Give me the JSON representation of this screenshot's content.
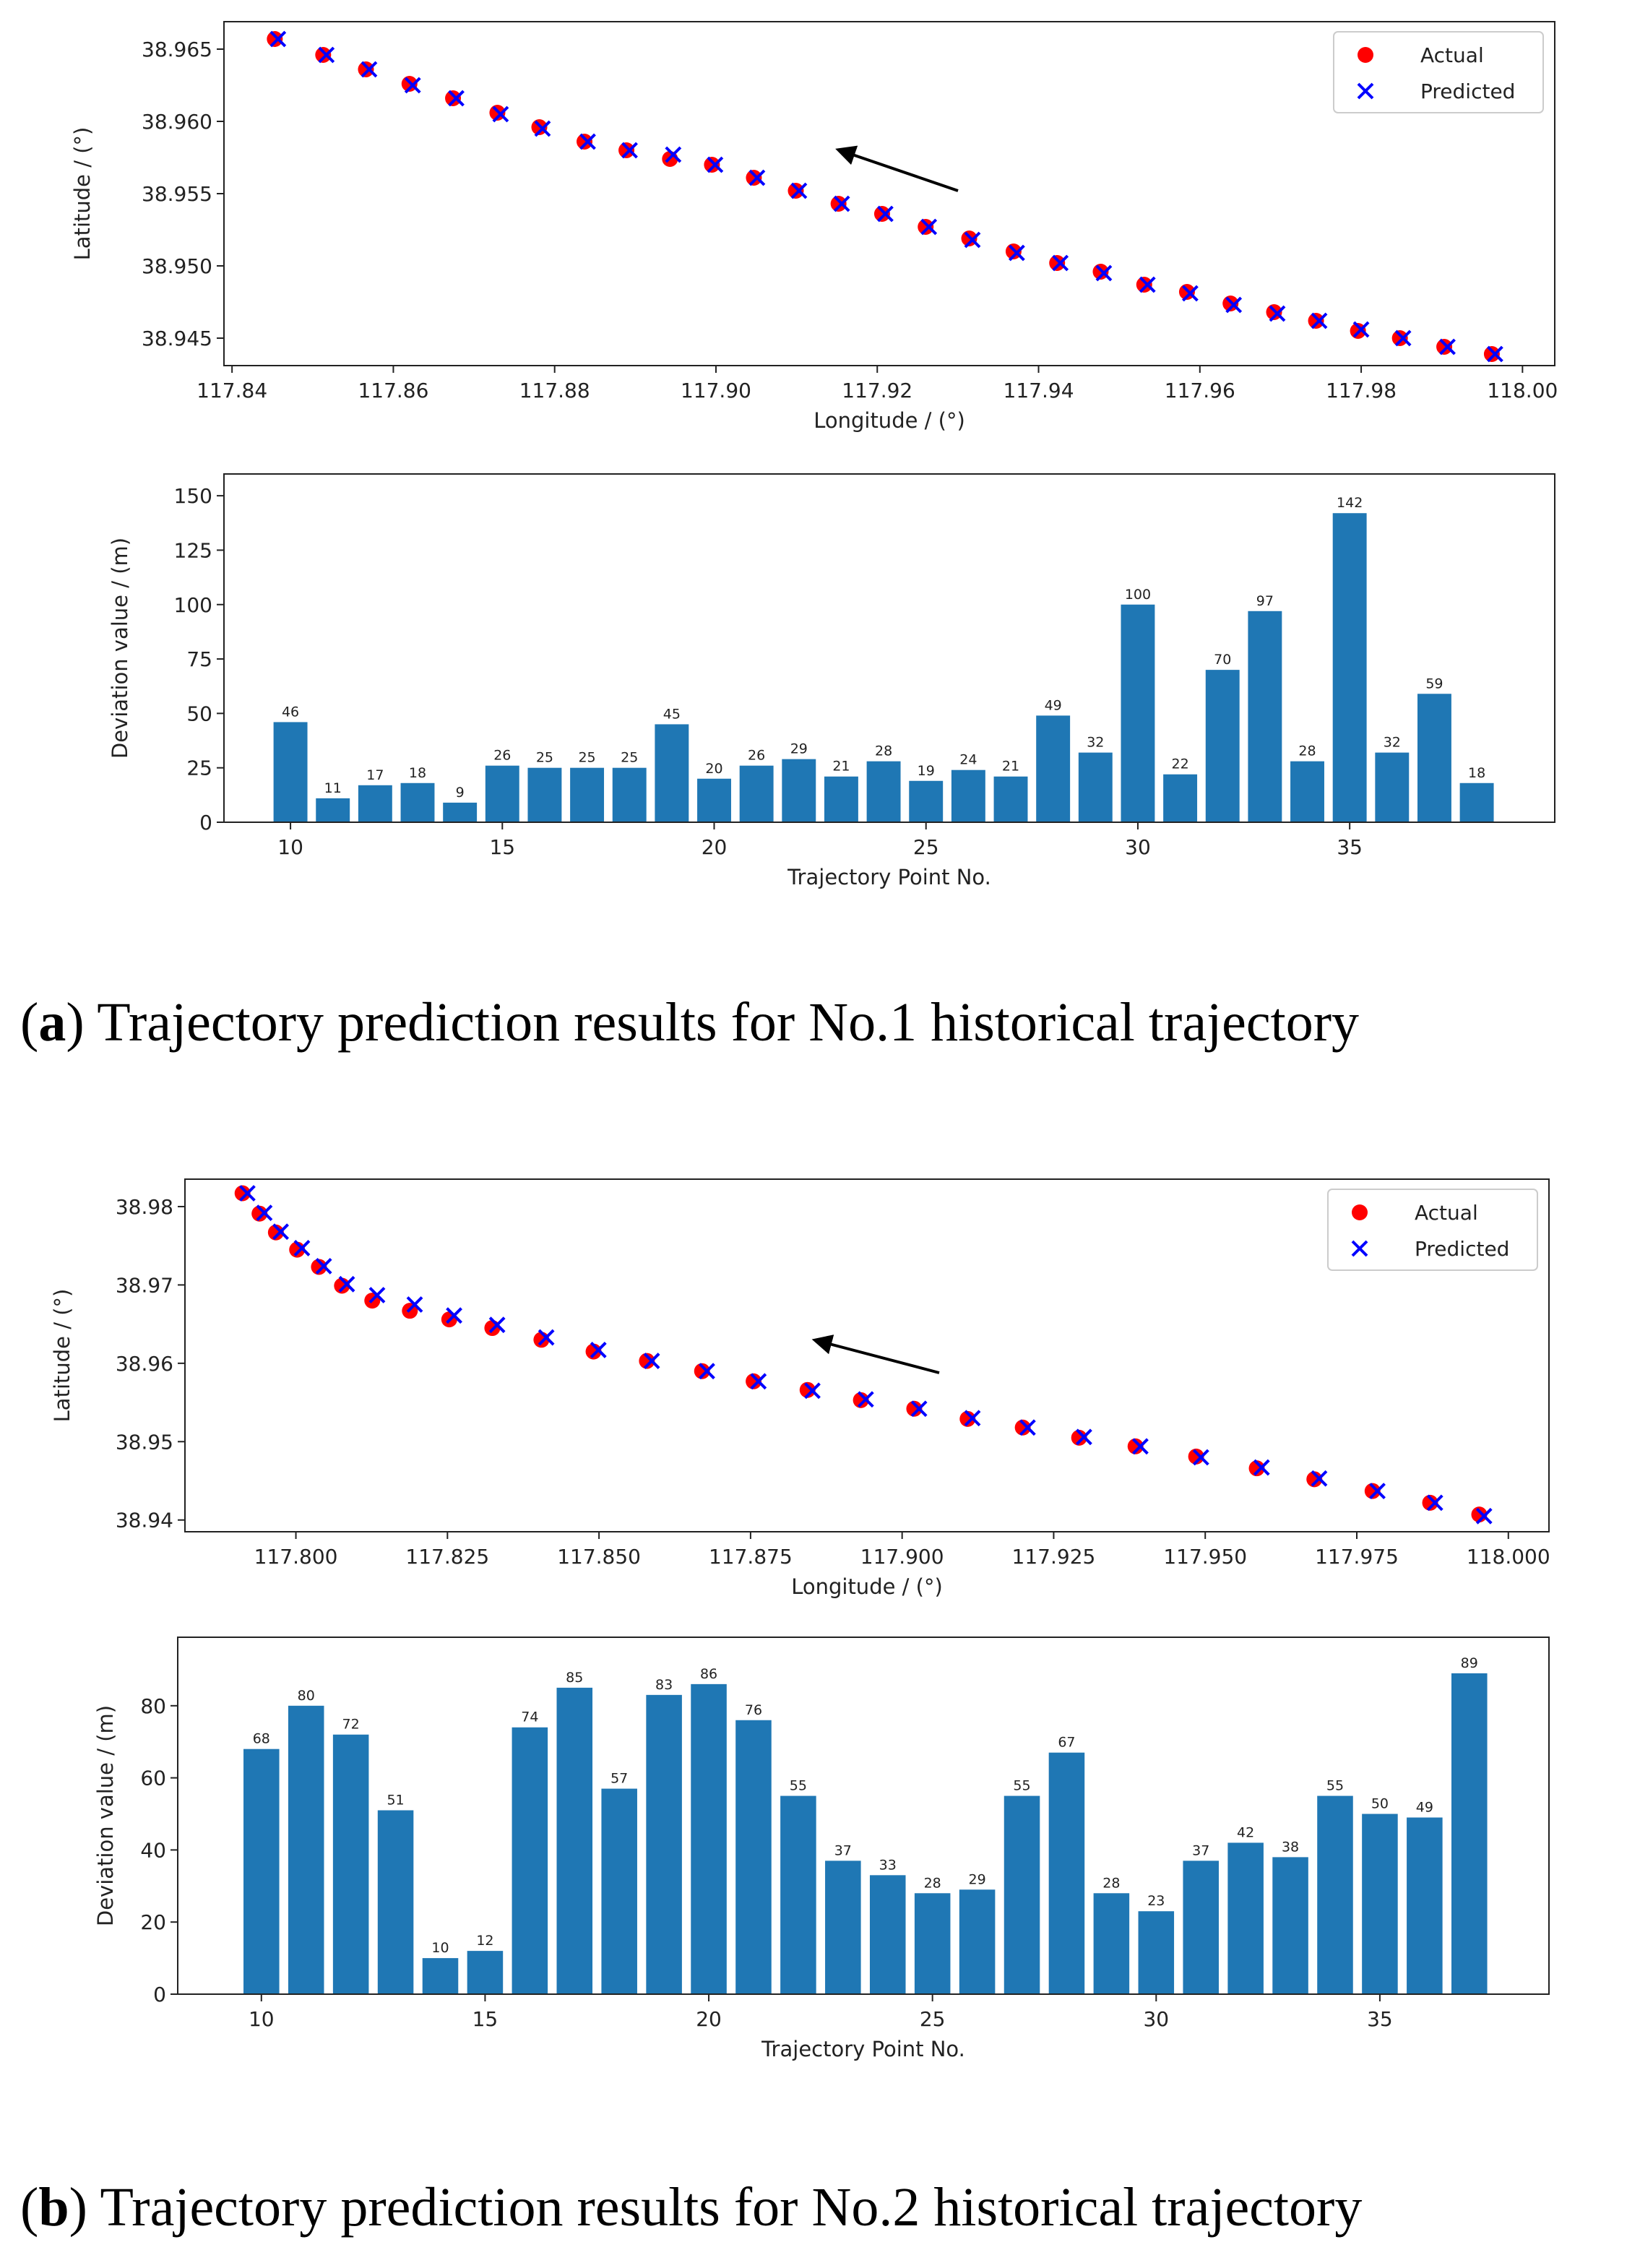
{
  "chart_data": [
    {
      "type": "scatter",
      "xlabel": "Longitude / (°)",
      "ylabel": "Latitude / (°)",
      "legend": "upper right",
      "xlim": [
        117.839,
        118.004
      ],
      "xticks": [
        117.84,
        117.86,
        117.88,
        {
          "value": 117.9,
          "label": "117.90"
        },
        117.92,
        117.94,
        117.96,
        117.98,
        {
          "value": 118,
          "label": "118.00"
        }
      ],
      "ylim": [
        38.9431,
        38.9669
      ],
      "yticks": [
        38.945,
        {
          "value": 38.95,
          "label": "38.950"
        },
        38.955,
        {
          "value": 38.96,
          "label": "38.960"
        },
        38.965
      ],
      "series": [
        {
          "name": "Actual",
          "color": "#ff0000",
          "marker": "o",
          "x": [
            117.8453,
            117.8513,
            117.8566,
            117.862,
            117.8674,
            117.8729,
            117.8781,
            117.8837,
            117.8889,
            117.8943,
            117.8995,
            117.9047,
            117.9099,
            117.9152,
            117.9206,
            117.926,
            117.9314,
            117.9369,
            117.9423,
            117.9477,
            117.9531,
            117.9584,
            117.9638,
            117.9692,
            117.9744,
            117.9796,
            117.9848,
            117.9903,
            117.9962
          ],
          "values": [
            38.9657,
            38.9646,
            38.9636,
            38.9626,
            38.9616,
            38.9606,
            38.9596,
            38.9586,
            38.958,
            38.9574,
            38.957,
            38.9561,
            38.9552,
            38.9543,
            38.9536,
            38.9527,
            38.9519,
            38.951,
            38.9502,
            38.9496,
            38.9487,
            38.9482,
            38.9474,
            38.9468,
            38.9462,
            38.9455,
            38.945,
            38.9444,
            38.9439
          ]
        },
        {
          "name": "Predicted",
          "color": "#0000ff",
          "marker": "x",
          "x": [
            117.8457,
            117.8517,
            117.857,
            117.8624,
            117.8678,
            117.8733,
            117.8785,
            117.8841,
            117.8893,
            117.8947,
            117.8999,
            117.9051,
            117.9103,
            117.9156,
            117.921,
            117.9264,
            117.9318,
            117.9373,
            117.9427,
            117.9481,
            117.9535,
            117.9588,
            117.9642,
            117.9696,
            117.9748,
            117.98,
            117.9852,
            117.9907,
            117.9966
          ],
          "values": [
            38.9657,
            38.9646,
            38.9636,
            38.9625,
            38.9616,
            38.9605,
            38.9595,
            38.9586,
            38.958,
            38.9577,
            38.957,
            38.9561,
            38.9552,
            38.9543,
            38.9536,
            38.9527,
            38.9518,
            38.9509,
            38.9502,
            38.9495,
            38.9487,
            38.9481,
            38.9473,
            38.9467,
            38.9462,
            38.9456,
            38.945,
            38.9444,
            38.9439
          ]
        }
      ]
    },
    {
      "type": "bar",
      "xlabel": "Trajectory Point No.",
      "ylabel": "Deviation value / (m)",
      "color": "#1f77b4",
      "xlim": [
        8.43,
        39.84
      ],
      "xticks": [
        10,
        15,
        20,
        25,
        30,
        35
      ],
      "ylim": [
        0,
        160
      ],
      "yticks": [
        0,
        25,
        50,
        75,
        100,
        125,
        150
      ],
      "x": [
        10,
        11,
        12,
        13,
        14,
        15,
        16,
        17,
        18,
        19,
        20,
        21,
        22,
        23,
        24,
        25,
        26,
        27,
        28,
        29,
        30,
        31,
        32,
        33,
        34,
        35,
        36,
        37,
        38
      ],
      "values": [
        46,
        11,
        17,
        18,
        9,
        26,
        25,
        25,
        25,
        45,
        20,
        26,
        29,
        21,
        28,
        19,
        24,
        21,
        49,
        32,
        100,
        22,
        70,
        97,
        28,
        142,
        32,
        59,
        18
      ]
    },
    {
      "type": "scatter",
      "xlabel": "Longitude / (°)",
      "ylabel": "Latitude / (°)",
      "legend": "upper right",
      "xlim": [
        117.7817,
        118.0067
      ],
      "xticks": [
        {
          "value": 117.8,
          "label": "117.800"
        },
        117.825,
        {
          "value": 117.85,
          "label": "117.850"
        },
        117.875,
        {
          "value": 117.9,
          "label": "117.900"
        },
        117.925,
        {
          "value": 117.95,
          "label": "117.950"
        },
        117.975,
        {
          "value": 118,
          "label": "118.000"
        }
      ],
      "ylim": [
        38.9385,
        38.9835
      ],
      "yticks": [
        38.94,
        38.95,
        38.96,
        38.97,
        38.98
      ],
      "series": [
        {
          "name": "Actual",
          "color": "#ff0000",
          "marker": "o",
          "x": [
            117.7912,
            117.794,
            117.7967,
            117.8002,
            117.8038,
            117.8076,
            117.8126,
            117.8188,
            117.8253,
            117.8324,
            117.8405,
            117.8491,
            117.8579,
            117.867,
            117.8755,
            117.8844,
            117.8932,
            117.902,
            117.9108,
            117.9199,
            117.9292,
            117.9385,
            117.9485,
            117.9585,
            117.968,
            117.9776,
            117.9871,
            117.9952
          ],
          "values": [
            38.9817,
            38.9791,
            38.9767,
            38.9745,
            38.9723,
            38.9699,
            38.968,
            38.9667,
            38.9656,
            38.9645,
            38.963,
            38.9615,
            38.9603,
            38.959,
            38.9577,
            38.9566,
            38.9553,
            38.9542,
            38.9529,
            38.9518,
            38.9505,
            38.9494,
            38.9481,
            38.9466,
            38.9452,
            38.9437,
            38.9422,
            38.9407
          ]
        },
        {
          "name": "Predicted",
          "color": "#0000ff",
          "marker": "x",
          "x": [
            117.792,
            117.7948,
            117.7975,
            117.801,
            117.8046,
            117.8084,
            117.8134,
            117.8196,
            117.8261,
            117.8332,
            117.8413,
            117.8499,
            117.8587,
            117.8678,
            117.8763,
            117.8852,
            117.894,
            117.9028,
            117.9116,
            117.9207,
            117.93,
            117.9393,
            117.9493,
            117.9593,
            117.9688,
            117.9784,
            117.9879,
            117.996
          ],
          "values": [
            38.9817,
            38.9792,
            38.9768,
            38.9747,
            38.9724,
            38.9701,
            38.9687,
            38.9675,
            38.9661,
            38.9649,
            38.9633,
            38.9617,
            38.9603,
            38.959,
            38.9577,
            38.9565,
            38.9554,
            38.9542,
            38.953,
            38.9518,
            38.9506,
            38.9494,
            38.948,
            38.9467,
            38.9453,
            38.9437,
            38.9422,
            38.9405
          ]
        }
      ]
    },
    {
      "type": "bar",
      "xlabel": "Trajectory Point No.",
      "ylabel": "Deviation value / (m)",
      "color": "#1f77b4",
      "xlim": [
        8.13,
        38.78
      ],
      "xticks": [
        10,
        15,
        20,
        25,
        30,
        35
      ],
      "ylim": [
        0,
        99
      ],
      "yticks": [
        0,
        20,
        40,
        60,
        80
      ],
      "x": [
        10,
        11,
        12,
        13,
        14,
        15,
        16,
        17,
        18,
        19,
        20,
        21,
        22,
        23,
        24,
        25,
        26,
        27,
        28,
        29,
        30,
        31,
        32,
        33,
        34,
        35,
        36,
        37
      ],
      "values": [
        68,
        80,
        72,
        51,
        10,
        12,
        74,
        85,
        57,
        83,
        86,
        76,
        55,
        37,
        33,
        28,
        29,
        55,
        67,
        28,
        23,
        37,
        42,
        38,
        55,
        50,
        49,
        89
      ]
    }
  ],
  "captions": [
    {
      "open": "(",
      "label": "a",
      "text": ") Trajectory prediction results for No.1 historical trajectory"
    },
    {
      "open": "(",
      "label": "b",
      "text": ") Trajectory prediction results for No.2 historical trajectory"
    }
  ]
}
